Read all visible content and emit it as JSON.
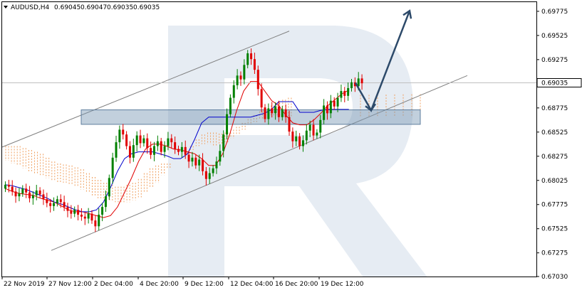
{
  "header": {
    "symbol": "AUDUSD,H4",
    "open": "0.69045",
    "high": "0.69047",
    "low": "0.69035",
    "close": "0.69035"
  },
  "chart_data": {
    "type": "candlestick",
    "symbol": "AUDUSD",
    "timeframe": "H4",
    "x_tick_labels": [
      "22 Nov 2019",
      "27 Nov 12:00",
      "2 Dec 04:00",
      "4 Dec 20:00",
      "9 Dec 12:00",
      "12 Dec 04:00",
      "16 Dec 20:00",
      "19 Dec 12:00"
    ],
    "y_tick_labels": [
      "0.69775",
      "0.69525",
      "0.69275",
      "0.69035",
      "0.68775",
      "0.68525",
      "0.68275",
      "0.68025",
      "0.67775",
      "0.67525",
      "0.67275",
      "0.67030"
    ],
    "ylim": [
      0.6703,
      0.6987
    ],
    "current_price": "0.69035",
    "price_path": [
      0.6798,
      0.6796,
      0.6791,
      0.6786,
      0.6789,
      0.6794,
      0.679,
      0.6784,
      0.6787,
      0.6792,
      0.6788,
      0.6783,
      0.6779,
      0.6776,
      0.6779,
      0.6783,
      0.678,
      0.6775,
      0.6771,
      0.6768,
      0.6772,
      0.6767,
      0.6765,
      0.6763,
      0.6768,
      0.6761,
      0.6755,
      0.6767,
      0.6775,
      0.6786,
      0.6805,
      0.6826,
      0.6842,
      0.6855,
      0.685,
      0.6838,
      0.6826,
      0.6839,
      0.6849,
      0.6841,
      0.6846,
      0.6836,
      0.6829,
      0.6838,
      0.6843,
      0.6832,
      0.6838,
      0.6846,
      0.6842,
      0.6835,
      0.6832,
      0.6837,
      0.6829,
      0.6822,
      0.6826,
      0.6818,
      0.6824,
      0.6812,
      0.6804,
      0.681,
      0.6815,
      0.6822,
      0.6833,
      0.685,
      0.6871,
      0.6888,
      0.6901,
      0.6911,
      0.6907,
      0.6922,
      0.6934,
      0.6928,
      0.6917,
      0.6897,
      0.6878,
      0.6866,
      0.6877,
      0.6872,
      0.6879,
      0.6868,
      0.6876,
      0.6868,
      0.6853,
      0.6843,
      0.6848,
      0.6838,
      0.6844,
      0.6854,
      0.686,
      0.6849,
      0.6852,
      0.6865,
      0.688,
      0.6872,
      0.6885,
      0.6879,
      0.6888,
      0.6895,
      0.689,
      0.6898,
      0.6904,
      0.69,
      0.6908,
      0.6903
    ],
    "price_start": "2019-11-21",
    "bar_interval_hours": 4,
    "tenkan_sen": [
      0.6794,
      0.6791,
      0.6789,
      0.6788,
      0.6787,
      0.6784,
      0.6782,
      0.678,
      0.6776,
      0.6772,
      0.677,
      0.677,
      0.6768,
      0.6766,
      0.6764,
      0.6766,
      0.6775,
      0.679,
      0.6805,
      0.6822,
      0.6835,
      0.684,
      0.684,
      0.6838,
      0.6835,
      0.6834,
      0.6832,
      0.683,
      0.6825,
      0.6818,
      0.6818,
      0.683,
      0.685,
      0.6875,
      0.6895,
      0.6905,
      0.6905,
      0.6895,
      0.6885,
      0.688,
      0.687,
      0.6862,
      0.686,
      0.686,
      0.6865,
      0.6872,
      0.688,
      0.6886,
      0.6892,
      0.6896
    ],
    "kijun_sen": [
      0.6798,
      0.6797,
      0.6795,
      0.6793,
      0.679,
      0.6787,
      0.6784,
      0.678,
      0.6778,
      0.6775,
      0.6772,
      0.677,
      0.677,
      0.6772,
      0.678,
      0.6795,
      0.6812,
      0.6825,
      0.683,
      0.6832,
      0.6832,
      0.6832,
      0.683,
      0.6828,
      0.6825,
      0.6825,
      0.683,
      0.6845,
      0.6862,
      0.6868,
      0.6868,
      0.6868,
      0.6868,
      0.6868,
      0.6868,
      0.6868,
      0.687,
      0.6872,
      0.6876,
      0.6884,
      0.6884,
      0.6884,
      0.6873,
      0.6873,
      0.6873,
      0.6875,
      0.6876,
      0.6876,
      0.6876,
      0.6876
    ],
    "cloud_span_a": [
      0.6838,
      0.6838,
      0.6838,
      0.6836,
      0.6834,
      0.6832,
      0.683,
      0.6826,
      0.6822,
      0.682,
      0.6819,
      0.6818,
      0.6816,
      0.6814,
      0.681,
      0.6806,
      0.6803,
      0.68,
      0.6798,
      0.6796,
      0.6796,
      0.6798,
      0.68,
      0.6804,
      0.681,
      0.6815,
      0.6818,
      0.682,
      0.682,
      0.6822,
      0.6826,
      0.6832,
      0.6838,
      0.6845,
      0.685,
      0.6852,
      0.6852,
      0.6851,
      0.6852,
      0.6855,
      0.6858,
      0.6862,
      0.6866,
      0.687,
      0.6874,
      0.6877,
      0.688,
      0.6883,
      0.6886,
      0.6888
    ],
    "cloud_span_b": [
      0.6823,
      0.682,
      0.6818,
      0.6815,
      0.6812,
      0.681,
      0.6808,
      0.6805,
      0.6802,
      0.68,
      0.68,
      0.6798,
      0.6796,
      0.6793,
      0.679,
      0.6787,
      0.6784,
      0.6782,
      0.6781,
      0.678,
      0.678,
      0.678,
      0.6782,
      0.6785,
      0.679,
      0.6795,
      0.68,
      0.6808,
      0.6815,
      0.6822,
      0.6826,
      0.683,
      0.6834,
      0.6838,
      0.684,
      0.684,
      0.6838,
      0.684,
      0.6842,
      0.6846,
      0.685,
      0.6855,
      0.686,
      0.6863,
      0.6866,
      0.6868,
      0.6868,
      0.6868,
      0.6868,
      0.6868
    ],
    "cloud_start": "2019-11-21",
    "cloud_bar_step": 2,
    "channel_upper": [
      [
        0.6837,
        0.6957
      ]
    ],
    "channel_lower": [
      [
        0.673,
        0.6911
      ]
    ],
    "support_zone": [
      0.68755,
      0.68605
    ],
    "forecast_path": [
      0.69035,
      0.6875,
      0.6978
    ],
    "watermark": "R",
    "colors": {
      "bull": "#008000",
      "bear": "#e00000",
      "tenkan": "#e00000",
      "kijun": "#0000cc",
      "cloud_a": "#f0a060",
      "cloud_b": "#c8a0c8",
      "channel": "#808080",
      "zone": "#7896b4",
      "arrow": "#2d4a6a",
      "watermark": "#e6ecf3"
    }
  }
}
